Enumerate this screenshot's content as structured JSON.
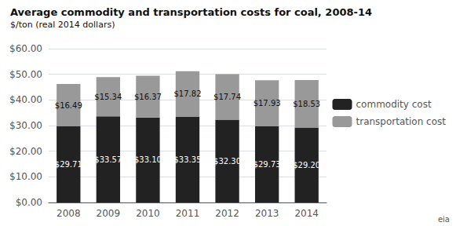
{
  "chart_data": {
    "type": "bar",
    "title": "Average commodity and transportation costs for coal, 2008-14",
    "subtitle": "$/ton (real 2014 dollars)",
    "categories": [
      "2008",
      "2009",
      "2010",
      "2011",
      "2012",
      "2013",
      "2014"
    ],
    "stacked": true,
    "data_labels": true,
    "series": [
      {
        "name": "commodity cost",
        "color": "#222222",
        "values": [
          29.71,
          33.57,
          33.1,
          33.35,
          32.3,
          29.73,
          29.2
        ],
        "value_labels": [
          "$29.71",
          "$33.57",
          "$33.10",
          "$33.35",
          "$32.30",
          "$29.73",
          "$29.20"
        ]
      },
      {
        "name": "transportation cost",
        "color": "#999999",
        "values": [
          16.49,
          15.34,
          16.37,
          17.82,
          17.74,
          17.93,
          18.53
        ],
        "value_labels": [
          "$16.49",
          "$15.34",
          "$16.37",
          "$17.82",
          "$17.74",
          "$17.93",
          "$18.53"
        ]
      }
    ],
    "ylim": [
      0,
      60
    ],
    "yticks": [
      {
        "value": 0,
        "label": "$0.00"
      },
      {
        "value": 10,
        "label": "$10.00"
      },
      {
        "value": 20,
        "label": "$20.00"
      },
      {
        "value": 30,
        "label": "$30.00"
      },
      {
        "value": 40,
        "label": "$40.00"
      },
      {
        "value": 50,
        "label": "$50.00"
      },
      {
        "value": 60,
        "label": "$60.00"
      }
    ],
    "grid": true,
    "legend": "right",
    "annotations": [
      "eia"
    ]
  }
}
